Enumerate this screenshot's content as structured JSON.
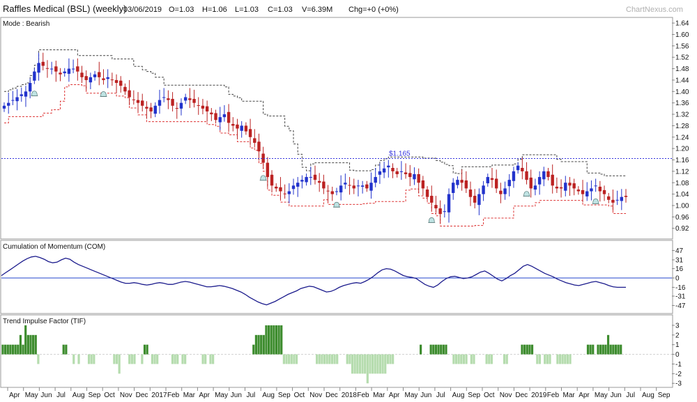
{
  "header": {
    "title": "Raffles Medical (BSL) (weekly)",
    "date": "03/06/2019",
    "open": "O=1.03",
    "high": "H=1.06",
    "low": "L=1.03",
    "close": "C=1.03",
    "volume": "V=6.39M",
    "change": "Chg=+0 (+0%)",
    "watermark": "ChartNexus.com"
  },
  "chart_data": [
    {
      "type": "candlestick",
      "title": "Mode : Bearish",
      "ylim": [
        0.89,
        1.65
      ],
      "y_ticks": [
        "0.92",
        "0.96",
        "1.00",
        "1.04",
        "1.08",
        "1.12",
        "1.16",
        "1.20",
        "1.24",
        "1.28",
        "1.32",
        "1.36",
        "1.40",
        "1.44",
        "1.48",
        "1.52",
        "1.56",
        "1.60",
        "1.64"
      ],
      "reference_line": {
        "value": 1.165,
        "label": "$1.165",
        "color": "#3333dd"
      },
      "colors": {
        "up": "#2233cc",
        "down": "#bb2222",
        "upper_band": "#444444",
        "lower_band": "#dd3333"
      },
      "close": [
        1.35,
        1.36,
        1.37,
        1.38,
        1.39,
        1.4,
        1.43,
        1.47,
        1.5,
        1.49,
        1.48,
        1.48,
        1.47,
        1.46,
        1.47,
        1.48,
        1.48,
        1.47,
        1.45,
        1.44,
        1.45,
        1.46,
        1.45,
        1.44,
        1.45,
        1.44,
        1.43,
        1.42,
        1.4,
        1.38,
        1.37,
        1.36,
        1.35,
        1.34,
        1.33,
        1.35,
        1.37,
        1.38,
        1.37,
        1.35,
        1.34,
        1.36,
        1.38,
        1.37,
        1.36,
        1.35,
        1.34,
        1.33,
        1.32,
        1.3,
        1.31,
        1.32,
        1.29,
        1.28,
        1.27,
        1.28,
        1.26,
        1.24,
        1.22,
        1.19,
        1.15,
        1.1,
        1.07,
        1.06,
        1.05,
        1.04,
        1.05,
        1.07,
        1.08,
        1.09,
        1.1,
        1.1,
        1.09,
        1.08,
        1.06,
        1.05,
        1.04,
        1.05,
        1.07,
        1.08,
        1.07,
        1.06,
        1.07,
        1.07,
        1.06,
        1.08,
        1.1,
        1.12,
        1.13,
        1.14,
        1.12,
        1.11,
        1.12,
        1.11,
        1.1,
        1.11,
        1.08,
        1.06,
        1.03,
        1.01,
        0.99,
        0.97,
        0.98,
        1.04,
        1.08,
        1.09,
        1.08,
        1.06,
        1.03,
        1.01,
        1.04,
        1.07,
        1.1,
        1.09,
        1.06,
        1.04,
        1.06,
        1.09,
        1.12,
        1.14,
        1.12,
        1.09,
        1.06,
        1.07,
        1.1,
        1.12,
        1.1,
        1.07,
        1.06,
        1.06,
        1.08,
        1.07,
        1.06,
        1.05,
        1.04,
        1.05,
        1.06,
        1.07,
        1.05,
        1.04,
        1.02,
        1.01,
        1.02,
        1.03,
        1.03
      ],
      "bands": {
        "upper_start": 1.4,
        "lower_start": 1.29,
        "upper_final": 1.06,
        "lower_final": 1.03
      },
      "alerts": [
        4,
        14,
        36,
        46,
        59,
        72,
        82
      ]
    },
    {
      "type": "line",
      "title": "Cumulation of Momentum (COM)",
      "ylim": [
        -56,
        56
      ],
      "y_ticks": [
        "-47",
        "-31",
        "-16",
        "0",
        "16",
        "31",
        "47"
      ],
      "zero_line": 0,
      "colors": {
        "line": "#1a1a8c",
        "zero": "#2244cc"
      },
      "values": [
        4,
        9,
        14,
        19,
        24,
        29,
        33,
        36,
        37,
        35,
        32,
        28,
        26,
        27,
        31,
        34,
        32,
        27,
        23,
        20,
        17,
        14,
        11,
        8,
        5,
        2,
        -1,
        -4,
        -7,
        -9,
        -9,
        -8,
        -9,
        -11,
        -12,
        -11,
        -9,
        -8,
        -9,
        -11,
        -11,
        -9,
        -7,
        -6,
        -7,
        -9,
        -11,
        -13,
        -15,
        -15,
        -14,
        -13,
        -14,
        -16,
        -18,
        -21,
        -24,
        -28,
        -33,
        -37,
        -41,
        -44,
        -46,
        -43,
        -40,
        -36,
        -32,
        -28,
        -25,
        -22,
        -18,
        -16,
        -14,
        -15,
        -18,
        -21,
        -24,
        -23,
        -20,
        -16,
        -13,
        -11,
        -9,
        -8,
        -9,
        -6,
        -2,
        3,
        9,
        14,
        16,
        15,
        12,
        8,
        4,
        2,
        1,
        -1,
        -6,
        -11,
        -14,
        -16,
        -12,
        -6,
        -1,
        2,
        3,
        1,
        -1,
        0,
        2,
        6,
        10,
        12,
        8,
        3,
        -2,
        -5,
        -1,
        4,
        8,
        14,
        20,
        23,
        20,
        16,
        12,
        8,
        5,
        2,
        -2,
        -5,
        -8,
        -10,
        -12,
        -13,
        -11,
        -9,
        -7,
        -6,
        -8,
        -10,
        -13,
        -15,
        -16,
        -16,
        -16
      ]
    },
    {
      "type": "bar",
      "title": "Trend Impulse Factor (TIF)",
      "ylim": [
        -3.2,
        3.5
      ],
      "y_ticks": [
        "-3",
        "-2",
        "-1",
        "0",
        "1",
        "2",
        "3"
      ],
      "colors": {
        "positive": "#3d8c2e",
        "negative": "#b5dcae",
        "baseline": "#cfcfcf"
      },
      "values": [
        1,
        1,
        1,
        1,
        1,
        1,
        1,
        2,
        1,
        3,
        2,
        2,
        2,
        2,
        -1,
        0,
        0,
        0,
        0,
        0,
        0,
        0,
        0,
        0,
        1,
        1,
        0,
        0,
        -1,
        0,
        -1,
        0,
        0,
        0,
        -1,
        -1,
        -1,
        0,
        0,
        0,
        0,
        0,
        0,
        0,
        -1,
        -1,
        -2,
        0,
        0,
        0,
        -1,
        -1,
        -1,
        0,
        0,
        -1,
        1,
        1,
        0,
        -1,
        -1,
        -1,
        0,
        0,
        0,
        0,
        0,
        -1,
        -1,
        -1,
        0,
        -1,
        -1,
        0,
        0,
        0,
        0,
        0,
        0,
        -1,
        -1,
        0,
        -1,
        -1,
        0,
        0,
        0,
        0,
        0,
        0,
        0,
        0,
        0,
        0,
        0,
        0,
        0,
        0,
        0,
        1,
        2,
        2,
        2,
        2,
        3,
        3,
        3,
        3,
        3,
        3,
        3,
        -1,
        -1,
        -1,
        -1,
        -1,
        -1,
        0,
        0,
        0,
        0,
        0,
        0,
        0,
        -1,
        -1,
        -1,
        -1,
        -1,
        -1,
        -1,
        -1,
        -1,
        0,
        0,
        0,
        -1,
        -1,
        -2,
        -2,
        -2,
        -2,
        -2,
        -2,
        -3,
        -2,
        -2,
        -2,
        -2,
        -2,
        -2,
        -2,
        -1,
        -1,
        -1,
        0,
        0,
        0,
        0,
        0,
        0,
        0,
        0,
        0,
        0,
        1,
        0,
        0,
        0,
        1,
        1,
        1,
        1,
        1,
        1,
        1,
        0,
        0,
        -1,
        -1,
        -1,
        -1,
        -1,
        -1,
        0,
        -1,
        -1,
        0,
        0,
        0,
        0,
        -1,
        -1,
        -1,
        0,
        0,
        0,
        0,
        -1,
        -1,
        0,
        0,
        0,
        0,
        0,
        1,
        1,
        1,
        1,
        1,
        0,
        -1,
        -1,
        0,
        -1,
        -1,
        -1,
        0,
        0,
        -1,
        -1,
        -1,
        -1,
        -1,
        -1,
        0,
        0,
        0,
        0,
        0,
        0,
        1,
        1,
        1,
        0,
        1,
        1,
        1,
        1,
        2,
        1,
        1,
        1,
        1,
        1,
        0,
        0
      ],
      "tif_note": "one bar per weekly candle column"
    }
  ],
  "x_axis": {
    "labels": [
      "Apr",
      "May",
      "Jun",
      "Jul",
      "Aug",
      "Sep",
      "Oct",
      "Nov",
      "Dec",
      "2017",
      "Feb",
      "Mar",
      "Apr",
      "May",
      "Jun",
      "Jul",
      "Aug",
      "Sep",
      "Oct",
      "Nov",
      "Dec",
      "2018",
      "Feb",
      "Mar",
      "Apr",
      "May",
      "Jun",
      "Jul",
      "Aug",
      "Sep",
      "Oct",
      "Nov",
      "Dec",
      "2019",
      "Feb",
      "Mar",
      "Apr",
      "May",
      "Jun",
      "Jul",
      "Aug",
      "Sep"
    ]
  }
}
